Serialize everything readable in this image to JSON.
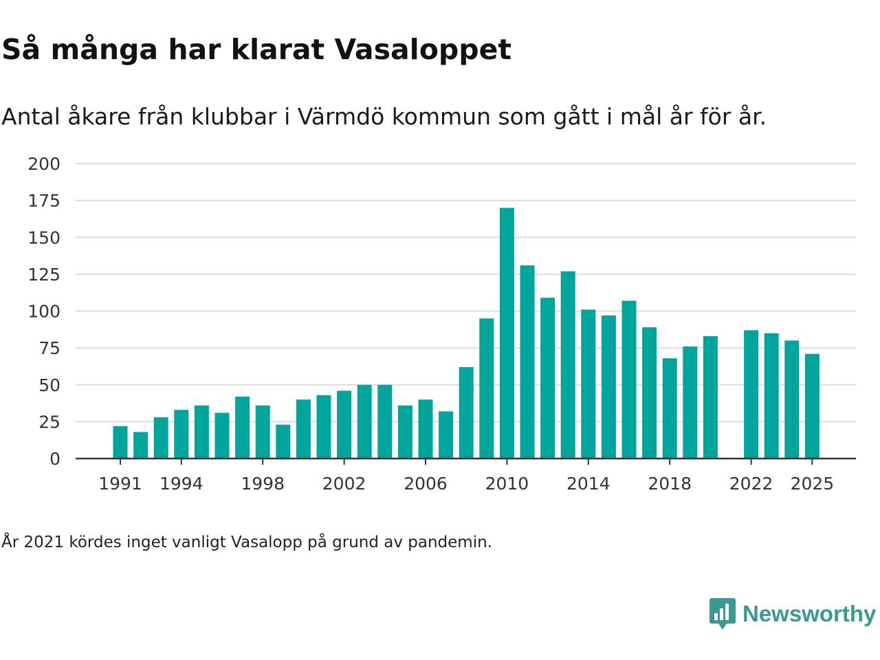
{
  "title": "Så många har klarat Vasaloppet",
  "subtitle": "Antal åkare från klubbar i Värmdö kommun som gått i mål år för år.",
  "note": "År 2021 kördes inget vanligt Vasalopp på grund av pandemin.",
  "brand": {
    "name": "Newsworthy",
    "icon": "newsworthy-logo-icon"
  },
  "colors": {
    "bar": "#00A69C",
    "grid": "#dcdcdc",
    "axis": "#333333",
    "brand": "#3a9993"
  },
  "chart_data": {
    "type": "bar",
    "title": "Så många har klarat Vasaloppet",
    "xlabel": "",
    "ylabel": "",
    "ylim": [
      0,
      200
    ],
    "yticks": [
      0,
      25,
      50,
      75,
      100,
      125,
      150,
      175,
      200
    ],
    "xticks": [
      1991,
      1994,
      1998,
      2002,
      2006,
      2010,
      2014,
      2018,
      2022,
      2025
    ],
    "grid": true,
    "categories": [
      1991,
      1992,
      1993,
      1994,
      1995,
      1996,
      1997,
      1998,
      1999,
      2000,
      2001,
      2002,
      2003,
      2004,
      2005,
      2006,
      2007,
      2008,
      2009,
      2010,
      2011,
      2012,
      2013,
      2014,
      2015,
      2016,
      2017,
      2018,
      2019,
      2020,
      2021,
      2022,
      2023,
      2024,
      2025
    ],
    "values": [
      22,
      18,
      28,
      33,
      36,
      31,
      42,
      36,
      23,
      40,
      43,
      46,
      50,
      50,
      36,
      40,
      32,
      62,
      95,
      170,
      131,
      109,
      127,
      101,
      97,
      107,
      89,
      68,
      76,
      83,
      null,
      87,
      85,
      80,
      71
    ]
  }
}
